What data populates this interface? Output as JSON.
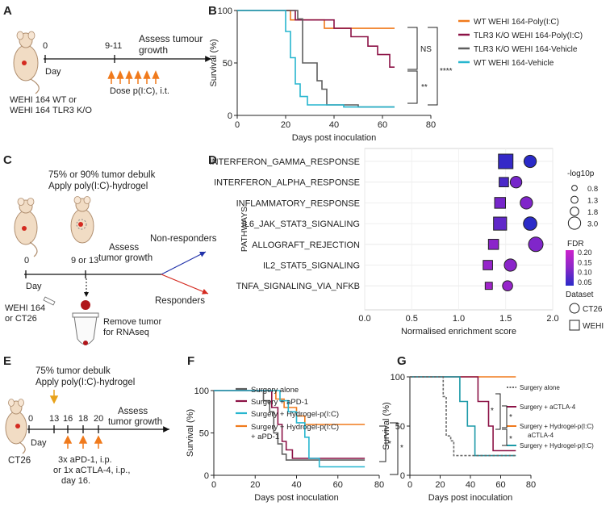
{
  "panels": {
    "A": {
      "letter": "A",
      "t0": "0",
      "t1": "9-11",
      "assess": "Assess tumour",
      "growth": "growth",
      "day": "Day",
      "dose": "Dose p(I:C), i.t.",
      "strain_l1": "WEHI 164 WT or",
      "strain_l2": "WEHI 164 TLR3 K/O"
    },
    "C": {
      "letter": "C",
      "title_l1": "75% or 90% tumor debulk",
      "title_l2": "Apply poly(I:C)-hydrogel",
      "t0": "0",
      "t1": "9 or 13",
      "assess_l1": "Assess",
      "assess_l2": "tumor growth",
      "day": "Day",
      "nonresp": "Non-responders",
      "resp": "Responders",
      "model_l1": "WEHI 164",
      "model_l2": "or CT26",
      "remove_l1": "Remove tumor",
      "remove_l2": "for RNAseq"
    },
    "E": {
      "letter": "E",
      "title_l1": "75% tumor debulk",
      "title_l2": "Apply poly(I:C)-hydrogel",
      "t0": "0",
      "t13": "13",
      "t16": "16",
      "t18": "18",
      "t20": "20",
      "assess_l1": "Assess",
      "assess_l2": "tumor growth",
      "day": "Day",
      "model": "CT26",
      "tx_l1": "3x aPD-1, i.p.",
      "tx_l2": "or 1x aCTLA-4, i.p.,",
      "tx_l3": "day 16."
    },
    "B": {
      "letter": "B"
    },
    "D": {
      "letter": "D"
    },
    "F": {
      "letter": "F"
    },
    "G": {
      "letter": "G"
    }
  },
  "colors": {
    "orange": "#f07a1c",
    "maroon": "#8c1246",
    "gray": "#5e5e5e",
    "cyan": "#27b6cf",
    "teal": "#1c9aa8",
    "mouse": "#f1dcc4",
    "mouse_line": "#b08f70",
    "red": "#d42a20",
    "arrow_orange": "#f07a1c"
  },
  "chart_data": [
    {
      "id": "B",
      "type": "line",
      "title": "",
      "xlabel": "Days post inoculation",
      "ylabel": "Survival (%)",
      "xlim": [
        0,
        80
      ],
      "ylim": [
        0,
        100
      ],
      "xticks": [
        "0",
        "20",
        "40",
        "60",
        "80"
      ],
      "yticks": [
        "0",
        "50",
        "100"
      ],
      "legend": [
        {
          "name": "WT WEHI 164-Poly(I:C)",
          "color": "#f07a1c"
        },
        {
          "name": "TLR3 K/O WEHI 164-Poly(I:C)",
          "color": "#8c1246"
        },
        {
          "name": "TLR3 K/O WEHI 164-Vehicle",
          "color": "#5e5e5e"
        },
        {
          "name": "WT WEHI 164-Vehicle",
          "color": "#27b6cf"
        }
      ],
      "series": [
        {
          "name": "WT WEHI 164-Poly(I:C)",
          "color": "#f07a1c",
          "points": [
            [
              0,
              100
            ],
            [
              22,
              100
            ],
            [
              22,
              91
            ],
            [
              36,
              91
            ],
            [
              36,
              83
            ],
            [
              65,
              83
            ]
          ]
        },
        {
          "name": "TLR3 K/O WEHI 164-Poly(I:C)",
          "color": "#8c1246",
          "points": [
            [
              0,
              100
            ],
            [
              24,
              100
            ],
            [
              24,
              91
            ],
            [
              40,
              91
            ],
            [
              40,
              83
            ],
            [
              47,
              83
            ],
            [
              47,
              75
            ],
            [
              54,
              75
            ],
            [
              54,
              66
            ],
            [
              58,
              66
            ],
            [
              58,
              58
            ],
            [
              63,
              58
            ],
            [
              63,
              46
            ],
            [
              65,
              46
            ]
          ]
        },
        {
          "name": "TLR3 K/O WEHI 164-Vehicle",
          "color": "#5e5e5e",
          "points": [
            [
              0,
              100
            ],
            [
              25,
              100
            ],
            [
              25,
              92
            ],
            [
              27,
              92
            ],
            [
              27,
              50
            ],
            [
              33,
              50
            ],
            [
              33,
              33
            ],
            [
              35,
              33
            ],
            [
              35,
              25
            ],
            [
              37,
              25
            ],
            [
              37,
              10
            ],
            [
              50,
              10
            ],
            [
              50,
              8
            ],
            [
              65,
              8
            ]
          ]
        },
        {
          "name": "WT WEHI 164-Vehicle",
          "color": "#27b6cf",
          "points": [
            [
              0,
              100
            ],
            [
              20,
              100
            ],
            [
              20,
              80
            ],
            [
              22,
              80
            ],
            [
              22,
              55
            ],
            [
              24,
              55
            ],
            [
              24,
              30
            ],
            [
              26,
              30
            ],
            [
              26,
              18
            ],
            [
              29,
              18
            ],
            [
              29,
              10
            ],
            [
              44,
              10
            ],
            [
              44,
              8
            ],
            [
              65,
              8
            ]
          ]
        }
      ],
      "annotations": [
        "NS",
        "**",
        "****"
      ]
    },
    {
      "id": "D",
      "type": "scatter",
      "xlabel": "Normalised enrichment score",
      "ylabel": "PATHWAYS",
      "xlim": [
        0.0,
        2.0
      ],
      "xticks": [
        "0.0",
        "0.5",
        "1.0",
        "1.5",
        "2.0"
      ],
      "pathways": [
        "INTERFERON_GAMMA_RESPONSE",
        "INTERFERON_ALPHA_RESPONSE",
        "INFLAMMATORY_RESPONSE",
        "IL6_JAK_STAT3_SIGNALING",
        "ALLOGRAFT_REJECTION",
        "IL2_STAT5_SIGNALING",
        "TNFA_SIGNALING_VIA_NFKB"
      ],
      "points": [
        {
          "pathway": "INTERFERON_GAMMA_RESPONSE",
          "dataset": "WEHI",
          "nes": 1.5,
          "log10p": 3.0,
          "fdr": 0.06
        },
        {
          "pathway": "INTERFERON_GAMMA_RESPONSE",
          "dataset": "CT26",
          "nes": 1.76,
          "log10p": 2.4,
          "fdr": 0.05
        },
        {
          "pathway": "INTERFERON_ALPHA_RESPONSE",
          "dataset": "WEHI",
          "nes": 1.48,
          "log10p": 1.6,
          "fdr": 0.08
        },
        {
          "pathway": "INTERFERON_ALPHA_RESPONSE",
          "dataset": "CT26",
          "nes": 1.61,
          "log10p": 2.2,
          "fdr": 0.12
        },
        {
          "pathway": "INFLAMMATORY_RESPONSE",
          "dataset": "WEHI",
          "nes": 1.44,
          "log10p": 2.0,
          "fdr": 0.12
        },
        {
          "pathway": "INFLAMMATORY_RESPONSE",
          "dataset": "CT26",
          "nes": 1.72,
          "log10p": 2.4,
          "fdr": 0.13
        },
        {
          "pathway": "IL6_JAK_STAT3_SIGNALING",
          "dataset": "WEHI",
          "nes": 1.44,
          "log10p": 2.6,
          "fdr": 0.1
        },
        {
          "pathway": "IL6_JAK_STAT3_SIGNALING",
          "dataset": "CT26",
          "nes": 1.76,
          "log10p": 2.7,
          "fdr": 0.05
        },
        {
          "pathway": "ALLOGRAFT_REJECTION",
          "dataset": "WEHI",
          "nes": 1.37,
          "log10p": 1.8,
          "fdr": 0.14
        },
        {
          "pathway": "ALLOGRAFT_REJECTION",
          "dataset": "CT26",
          "nes": 1.82,
          "log10p": 3.0,
          "fdr": 0.13
        },
        {
          "pathway": "IL2_STAT5_SIGNALING",
          "dataset": "WEHI",
          "nes": 1.31,
          "log10p": 1.6,
          "fdr": 0.15
        },
        {
          "pathway": "IL2_STAT5_SIGNALING",
          "dataset": "CT26",
          "nes": 1.55,
          "log10p": 2.4,
          "fdr": 0.14
        },
        {
          "pathway": "TNFA_SIGNALING_VIA_NFKB",
          "dataset": "WEHI",
          "nes": 1.32,
          "log10p": 1.0,
          "fdr": 0.16
        },
        {
          "pathway": "TNFA_SIGNALING_VIA_NFKB",
          "dataset": "CT26",
          "nes": 1.52,
          "log10p": 1.8,
          "fdr": 0.15
        }
      ],
      "size_legend_title": "-log10p",
      "size_legend": [
        "0.8",
        "1.3",
        "1.8",
        "3.0"
      ],
      "size_values": [
        0.8,
        1.3,
        1.8,
        3.0
      ],
      "fdr_legend_title": "FDR",
      "fdr_ticks": [
        "0.20",
        "0.15",
        "0.10",
        "0.05"
      ],
      "dataset_legend_title": "Dataset",
      "dataset_legend": [
        "CT26",
        "WEHI"
      ]
    },
    {
      "id": "F",
      "type": "line",
      "xlabel": "Days post inoculation",
      "ylabel": "Survival (%)",
      "xlim": [
        0,
        80
      ],
      "ylim": [
        0,
        100
      ],
      "xticks": [
        "0",
        "20",
        "40",
        "60",
        "80"
      ],
      "yticks": [
        "0",
        "50",
        "100"
      ],
      "legend": [
        {
          "name": "Surgery alone",
          "color": "#5e5e5e"
        },
        {
          "name": "Surgery + aPD-1",
          "color": "#8c1246"
        },
        {
          "name": "Surgery + Hydrogel-p(I:C)",
          "color": "#27b6cf"
        },
        {
          "name": "Surgery + Hydrogel-p(I:C)",
          "name2": "+ aPD-1",
          "color": "#f07a1c"
        }
      ],
      "series": [
        {
          "name": "Surgery + Hydrogel-p(I:C) + aPD-1",
          "color": "#f07a1c",
          "points": [
            [
              0,
              100
            ],
            [
              30,
              100
            ],
            [
              30,
              90
            ],
            [
              34,
              90
            ],
            [
              34,
              80
            ],
            [
              40,
              80
            ],
            [
              40,
              70
            ],
            [
              44,
              70
            ],
            [
              44,
              60
            ],
            [
              73,
              60
            ]
          ]
        },
        {
          "name": "Surgery alone",
          "color": "#5e5e5e",
          "points": [
            [
              0,
              100
            ],
            [
              24,
              100
            ],
            [
              24,
              88
            ],
            [
              27,
              88
            ],
            [
              27,
              75
            ],
            [
              29,
              75
            ],
            [
              29,
              50
            ],
            [
              31,
              50
            ],
            [
              31,
              37
            ],
            [
              33,
              37
            ],
            [
              33,
              25
            ],
            [
              35,
              25
            ],
            [
              35,
              18
            ],
            [
              73,
              18
            ]
          ]
        },
        {
          "name": "Surgery + aPD-1",
          "color": "#8c1246",
          "points": [
            [
              0,
              100
            ],
            [
              28,
              100
            ],
            [
              28,
              80
            ],
            [
              31,
              80
            ],
            [
              31,
              60
            ],
            [
              33,
              60
            ],
            [
              33,
              40
            ],
            [
              35,
              40
            ],
            [
              35,
              30
            ],
            [
              38,
              30
            ],
            [
              38,
              20
            ],
            [
              73,
              20
            ]
          ]
        },
        {
          "name": "Surgery + Hydrogel-p(I:C)",
          "color": "#27b6cf",
          "points": [
            [
              0,
              100
            ],
            [
              32,
              100
            ],
            [
              32,
              88
            ],
            [
              36,
              88
            ],
            [
              36,
              75
            ],
            [
              40,
              75
            ],
            [
              40,
              62
            ],
            [
              44,
              62
            ],
            [
              44,
              45
            ],
            [
              46,
              45
            ],
            [
              46,
              20
            ],
            [
              51,
              20
            ],
            [
              51,
              10
            ],
            [
              73,
              10
            ]
          ]
        }
      ],
      "annotations": [
        "*",
        "*"
      ]
    },
    {
      "id": "G",
      "type": "line",
      "xlabel": "Days post inoculation",
      "ylabel": "Survival (%)",
      "xlim": [
        0,
        80
      ],
      "ylim": [
        0,
        100
      ],
      "xticks": [
        "0",
        "20",
        "40",
        "60",
        "80"
      ],
      "yticks": [
        "0",
        "50",
        "100"
      ],
      "legend": [
        {
          "name": "Surgery alone",
          "color": "#6a6a6a"
        },
        {
          "name": "Surgery + aCTLA-4",
          "color": "#8c1246"
        },
        {
          "name": "Surgery + Hydrogel-p(I:C)",
          "name2": "aCTLA-4",
          "color": "#f07a1c"
        },
        {
          "name": "Surgery + Hydrogel-p(I:C)",
          "color": "#1c9aa8"
        }
      ],
      "series": [
        {
          "name": "Surgery + Hydrogel-p(I:C) + aCTLA-4",
          "color": "#f07a1c",
          "points": [
            [
              0,
              100
            ],
            [
              70,
              100
            ]
          ]
        },
        {
          "name": "Surgery + aCTLA-4",
          "color": "#8c1246",
          "points": [
            [
              0,
              100
            ],
            [
              45,
              100
            ],
            [
              45,
              75
            ],
            [
              52,
              75
            ],
            [
              52,
              50
            ],
            [
              55,
              50
            ],
            [
              55,
              25
            ],
            [
              70,
              25
            ]
          ]
        },
        {
          "name": "Surgery + Hydrogel-p(I:C)",
          "color": "#1c9aa8",
          "points": [
            [
              0,
              100
            ],
            [
              33,
              100
            ],
            [
              33,
              75
            ],
            [
              38,
              75
            ],
            [
              38,
              50
            ],
            [
              43,
              50
            ],
            [
              43,
              20
            ],
            [
              70,
              20
            ]
          ]
        },
        {
          "name": "Surgery alone",
          "color": "#6a6a6a",
          "dashed": true,
          "points": [
            [
              0,
              100
            ],
            [
              22,
              100
            ],
            [
              22,
              80
            ],
            [
              24,
              80
            ],
            [
              24,
              40
            ],
            [
              27,
              40
            ],
            [
              27,
              35
            ],
            [
              29,
              35
            ],
            [
              29,
              20
            ],
            [
              70,
              20
            ]
          ]
        }
      ],
      "annotations": [
        "*",
        "*",
        "*"
      ]
    }
  ]
}
